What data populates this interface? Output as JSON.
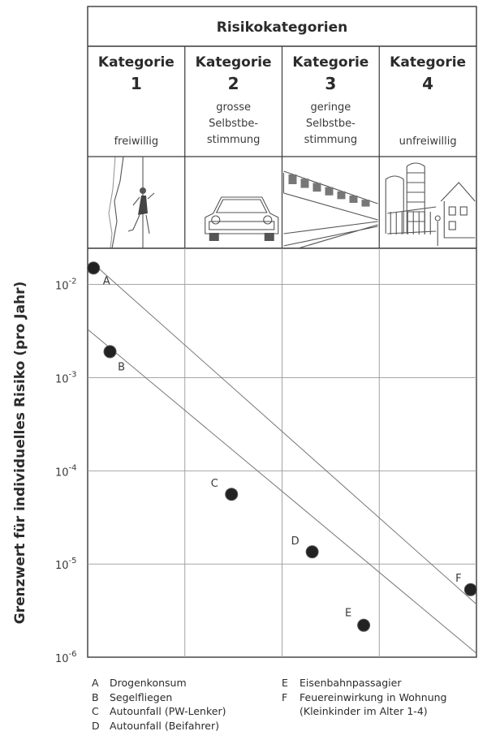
{
  "header": {
    "title": "Risikokategorien",
    "columns": [
      {
        "word": "Kategorie",
        "num": "1",
        "desc": [
          "freiwillig"
        ],
        "illustration": "rock-climber-icon"
      },
      {
        "word": "Kategorie",
        "num": "2",
        "desc": [
          "grosse",
          "Selbstbe-",
          "stimmung"
        ],
        "illustration": "car-icon"
      },
      {
        "word": "Kategorie",
        "num": "3",
        "desc": [
          "geringe",
          "Selbstbe-",
          "stimmung"
        ],
        "illustration": "train-icon"
      },
      {
        "word": "Kategorie",
        "num": "4",
        "desc": [
          "unfreiwillig"
        ],
        "illustration": "house-tanks-icon"
      }
    ]
  },
  "chart_data": {
    "type": "scatter",
    "ylabel": "Grenzwert für individuelles Risiko (pro Jahr)",
    "yscale": "log",
    "ylim": [
      1e-06,
      0.02
    ],
    "yticks": [
      {
        "value": 0.01,
        "base": "10",
        "exp": "-2"
      },
      {
        "value": 0.001,
        "base": "10",
        "exp": "-3"
      },
      {
        "value": 0.0001,
        "base": "10",
        "exp": "-4"
      },
      {
        "value": 1e-05,
        "base": "10",
        "exp": "-5"
      },
      {
        "value": 1e-06,
        "base": "10",
        "exp": "-6"
      }
    ],
    "xcategories": [
      "1",
      "2",
      "3",
      "4"
    ],
    "xlim": [
      0,
      4
    ],
    "grid": true,
    "points": [
      {
        "label": "A",
        "x": 0.06,
        "y": 0.015
      },
      {
        "label": "B",
        "x": 0.23,
        "y": 0.0019
      },
      {
        "label": "C",
        "x": 1.48,
        "y": 5.6e-05
      },
      {
        "label": "D",
        "x": 2.31,
        "y": 1.35e-05
      },
      {
        "label": "E",
        "x": 2.84,
        "y": 2.2e-06
      },
      {
        "label": "F",
        "x": 3.94,
        "y": 5.3e-06
      }
    ],
    "band_lines": [
      {
        "from": [
          0.05,
          0.017
        ],
        "to": [
          4.0,
          3.7e-06
        ]
      },
      {
        "from": [
          0.0,
          0.0033
        ],
        "to": [
          4.0,
          1.1e-06
        ]
      }
    ]
  },
  "legend": {
    "left": [
      {
        "letter": "A",
        "text": "Drogenkonsum"
      },
      {
        "letter": "B",
        "text": "Segelfliegen"
      },
      {
        "letter": "C",
        "text": "Autounfall (PW-Lenker)"
      },
      {
        "letter": "D",
        "text": "Autounfall (Beifahrer)"
      }
    ],
    "right": [
      {
        "letter": "E",
        "text": "Eisenbahnpassagier"
      },
      {
        "letter": "F",
        "text": "Feuereinwirkung in Wohnung"
      },
      {
        "letter": "",
        "text": "(Kleinkinder im Alter 1-4)"
      }
    ]
  }
}
